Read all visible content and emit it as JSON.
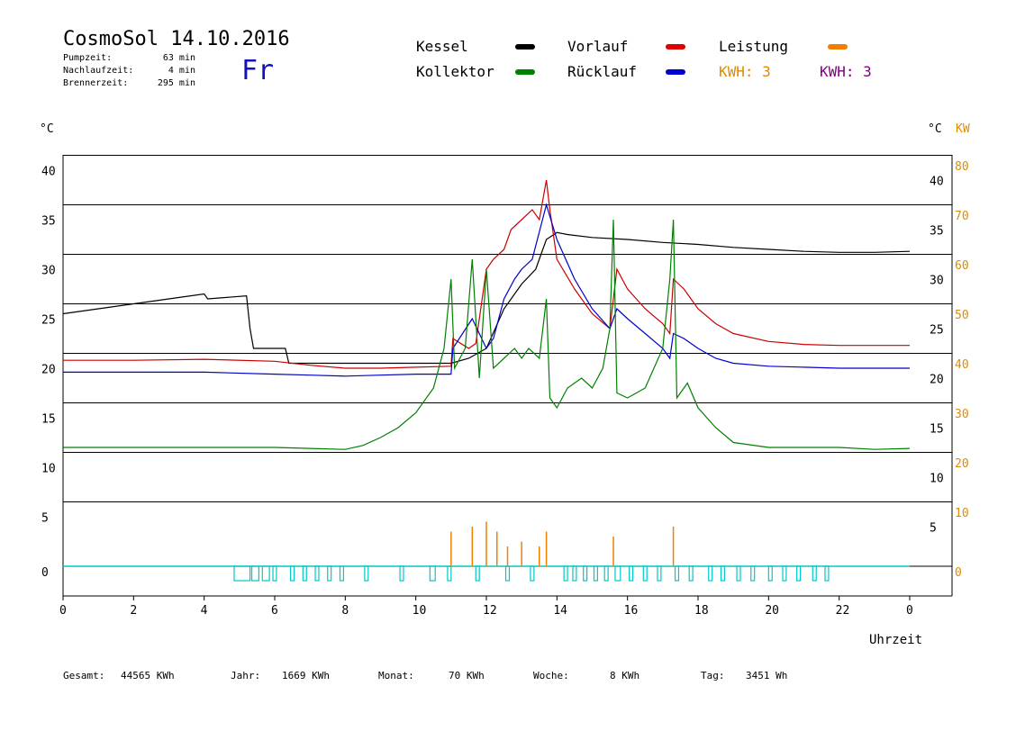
{
  "header": {
    "title": "CosmoSol 14.10.2016",
    "day": "Fr",
    "stats": [
      {
        "label": "Pumpzeit:",
        "value": "63 min"
      },
      {
        "label": "Nachlaufzeit:",
        "value": "4 min"
      },
      {
        "label": "Brennerzeit:",
        "value": "295 min"
      }
    ]
  },
  "legend": {
    "items": [
      {
        "label": "Kessel",
        "color": "#000000"
      },
      {
        "label": "Vorlauf",
        "color": "#e00000"
      },
      {
        "label": "Leistung",
        "color": "#f08000"
      },
      {
        "label": "Kollektor",
        "color": "#008000"
      },
      {
        "label": "Rücklauf",
        "color": "#0000d0"
      }
    ],
    "kwh": [
      {
        "text": "KWH: 3",
        "color": "#e08a00"
      },
      {
        "text": "KWH: 3",
        "color": "#800080"
      }
    ]
  },
  "axes": {
    "left_unit": "°C",
    "right_unit": "°C",
    "right_kw_unit": "KW",
    "xlabel": "Uhrzeit"
  },
  "footer": [
    {
      "label": "Gesamt:",
      "value": "44565 KWh"
    },
    {
      "label": "Jahr:",
      "value": "1669 KWh"
    },
    {
      "label": "Monat:",
      "value": "70 KWh"
    },
    {
      "label": "Woche:",
      "value": "8 KWh"
    },
    {
      "label": "Tag:",
      "value": "3451 Wh"
    }
  ],
  "chart_data": {
    "type": "line",
    "title": "CosmoSol 14.10.2016",
    "xlabel": "Uhrzeit",
    "ylabel": "°C",
    "xlim": [
      0,
      24
    ],
    "ylim": [
      -3,
      42
    ],
    "x_ticks": [
      "0",
      "2",
      "4",
      "6",
      "8",
      "10",
      "12",
      "14",
      "16",
      "18",
      "20",
      "22",
      "0"
    ],
    "left_ticks": [
      0,
      5,
      10,
      15,
      20,
      25,
      30,
      35,
      40
    ],
    "right_ticks": [
      5,
      10,
      15,
      20,
      25,
      30,
      35,
      40
    ],
    "kw_ticks": [
      0,
      10,
      20,
      30,
      40,
      50,
      60,
      70,
      80
    ],
    "series": [
      {
        "name": "Kessel",
        "color": "#000000",
        "points": [
          [
            0,
            25.5
          ],
          [
            1,
            26
          ],
          [
            2,
            26.5
          ],
          [
            3,
            27
          ],
          [
            4,
            27.5
          ],
          [
            4.1,
            27
          ],
          [
            5.2,
            27.3
          ],
          [
            5.3,
            24
          ],
          [
            5.4,
            22
          ],
          [
            6.3,
            22
          ],
          [
            6.4,
            20.5
          ],
          [
            11,
            20.5
          ],
          [
            11.5,
            21
          ],
          [
            12,
            22
          ],
          [
            12.5,
            26
          ],
          [
            13,
            28.5
          ],
          [
            13.4,
            30
          ],
          [
            13.7,
            33
          ],
          [
            14,
            33.7
          ],
          [
            14.3,
            33.5
          ],
          [
            15,
            33.2
          ],
          [
            16,
            33
          ],
          [
            17,
            32.7
          ],
          [
            18,
            32.5
          ],
          [
            19,
            32.2
          ],
          [
            20,
            32
          ],
          [
            21,
            31.8
          ],
          [
            22,
            31.7
          ],
          [
            23,
            31.7
          ],
          [
            24,
            31.8
          ]
        ]
      },
      {
        "name": "Vorlauf",
        "color": "#cc0000",
        "points": [
          [
            0,
            20.8
          ],
          [
            2,
            20.8
          ],
          [
            4,
            20.9
          ],
          [
            6,
            20.7
          ],
          [
            7,
            20.3
          ],
          [
            8,
            20
          ],
          [
            9,
            20
          ],
          [
            10,
            20.1
          ],
          [
            11,
            20.2
          ],
          [
            11.05,
            23
          ],
          [
            11.5,
            22
          ],
          [
            11.7,
            22.5
          ],
          [
            12,
            30
          ],
          [
            12.2,
            31
          ],
          [
            12.5,
            32
          ],
          [
            12.7,
            34
          ],
          [
            13,
            35
          ],
          [
            13.3,
            36
          ],
          [
            13.5,
            35
          ],
          [
            13.7,
            39
          ],
          [
            13.8,
            36
          ],
          [
            14,
            31
          ],
          [
            14.5,
            28
          ],
          [
            15,
            25.5
          ],
          [
            15.5,
            24
          ],
          [
            15.7,
            30
          ],
          [
            16,
            28
          ],
          [
            16.5,
            26
          ],
          [
            17,
            24.5
          ],
          [
            17.2,
            23.5
          ],
          [
            17.3,
            29
          ],
          [
            17.6,
            28
          ],
          [
            18,
            26
          ],
          [
            18.5,
            24.5
          ],
          [
            19,
            23.5
          ],
          [
            20,
            22.7
          ],
          [
            21,
            22.4
          ],
          [
            22,
            22.3
          ],
          [
            23,
            22.3
          ],
          [
            24,
            22.3
          ]
        ]
      },
      {
        "name": "Rücklauf",
        "color": "#0000cc",
        "points": [
          [
            0,
            19.6
          ],
          [
            2,
            19.6
          ],
          [
            4,
            19.6
          ],
          [
            6,
            19.4
          ],
          [
            7,
            19.3
          ],
          [
            8,
            19.2
          ],
          [
            9,
            19.3
          ],
          [
            10,
            19.4
          ],
          [
            11,
            19.4
          ],
          [
            11.05,
            22
          ],
          [
            11.6,
            25
          ],
          [
            12,
            22
          ],
          [
            12.2,
            23
          ],
          [
            12.5,
            27
          ],
          [
            12.8,
            29
          ],
          [
            13,
            30
          ],
          [
            13.3,
            31
          ],
          [
            13.7,
            36.5
          ],
          [
            14,
            33
          ],
          [
            14.5,
            29
          ],
          [
            15,
            26
          ],
          [
            15.5,
            24
          ],
          [
            15.7,
            26
          ],
          [
            16,
            25
          ],
          [
            16.5,
            23.5
          ],
          [
            17,
            22
          ],
          [
            17.2,
            21
          ],
          [
            17.3,
            23.5
          ],
          [
            17.6,
            23
          ],
          [
            18,
            22
          ],
          [
            18.5,
            21
          ],
          [
            19,
            20.5
          ],
          [
            20,
            20.2
          ],
          [
            21,
            20.1
          ],
          [
            22,
            20
          ],
          [
            23,
            20
          ],
          [
            24,
            20
          ]
        ]
      },
      {
        "name": "Kollektor",
        "color": "#008000",
        "points": [
          [
            0,
            12
          ],
          [
            2,
            12
          ],
          [
            4,
            12
          ],
          [
            6,
            12
          ],
          [
            7,
            11.9
          ],
          [
            8,
            11.8
          ],
          [
            8.5,
            12.2
          ],
          [
            9,
            13
          ],
          [
            9.5,
            14
          ],
          [
            10,
            15.5
          ],
          [
            10.5,
            18
          ],
          [
            10.8,
            22
          ],
          [
            11,
            29
          ],
          [
            11.1,
            20
          ],
          [
            11.4,
            22
          ],
          [
            11.6,
            31
          ],
          [
            11.8,
            19
          ],
          [
            12,
            30
          ],
          [
            12.2,
            20
          ],
          [
            12.5,
            21
          ],
          [
            12.8,
            22
          ],
          [
            13,
            21
          ],
          [
            13.2,
            22
          ],
          [
            13.5,
            21
          ],
          [
            13.7,
            27
          ],
          [
            13.8,
            17
          ],
          [
            14,
            16
          ],
          [
            14.3,
            18
          ],
          [
            14.7,
            19
          ],
          [
            15,
            18
          ],
          [
            15.3,
            20
          ],
          [
            15.5,
            24
          ],
          [
            15.6,
            35
          ],
          [
            15.7,
            17.5
          ],
          [
            16,
            17
          ],
          [
            16.5,
            18
          ],
          [
            17,
            22
          ],
          [
            17.2,
            29
          ],
          [
            17.3,
            35
          ],
          [
            17.4,
            17
          ],
          [
            17.7,
            18.5
          ],
          [
            18,
            16
          ],
          [
            18.5,
            14
          ],
          [
            19,
            12.5
          ],
          [
            20,
            12
          ],
          [
            21,
            12
          ],
          [
            22,
            12
          ],
          [
            23,
            11.8
          ],
          [
            24,
            11.9
          ]
        ]
      }
    ],
    "leistung_spikes_kw": [
      [
        11.0,
        7
      ],
      [
        11.6,
        8
      ],
      [
        12.0,
        9
      ],
      [
        12.3,
        7
      ],
      [
        12.6,
        4
      ],
      [
        13.0,
        5
      ],
      [
        13.5,
        4
      ],
      [
        13.7,
        7
      ],
      [
        15.6,
        6
      ],
      [
        17.3,
        8
      ]
    ],
    "pump_segments": [
      [
        4.85,
        5.3
      ],
      [
        5.35,
        5.55
      ],
      [
        5.65,
        5.85
      ],
      [
        5.95,
        6.05
      ],
      [
        6.45,
        6.55
      ],
      [
        6.8,
        6.9
      ],
      [
        7.15,
        7.25
      ],
      [
        7.5,
        7.6
      ],
      [
        7.85,
        7.95
      ],
      [
        8.55,
        8.65
      ],
      [
        9.55,
        9.65
      ],
      [
        10.4,
        10.55
      ],
      [
        10.9,
        11.0
      ],
      [
        11.7,
        11.8
      ],
      [
        12.55,
        12.65
      ],
      [
        13.25,
        13.35
      ],
      [
        14.2,
        14.3
      ],
      [
        14.45,
        14.55
      ],
      [
        14.75,
        14.85
      ],
      [
        15.05,
        15.15
      ],
      [
        15.35,
        15.45
      ],
      [
        15.65,
        15.8
      ],
      [
        16.05,
        16.15
      ],
      [
        16.45,
        16.55
      ],
      [
        16.85,
        16.95
      ],
      [
        17.35,
        17.45
      ],
      [
        17.75,
        17.85
      ],
      [
        18.3,
        18.4
      ],
      [
        18.65,
        18.75
      ],
      [
        19.1,
        19.2
      ],
      [
        19.5,
        19.6
      ],
      [
        20.0,
        20.1
      ],
      [
        20.4,
        20.5
      ],
      [
        20.8,
        20.9
      ],
      [
        21.25,
        21.35
      ],
      [
        21.6,
        21.7
      ]
    ]
  }
}
